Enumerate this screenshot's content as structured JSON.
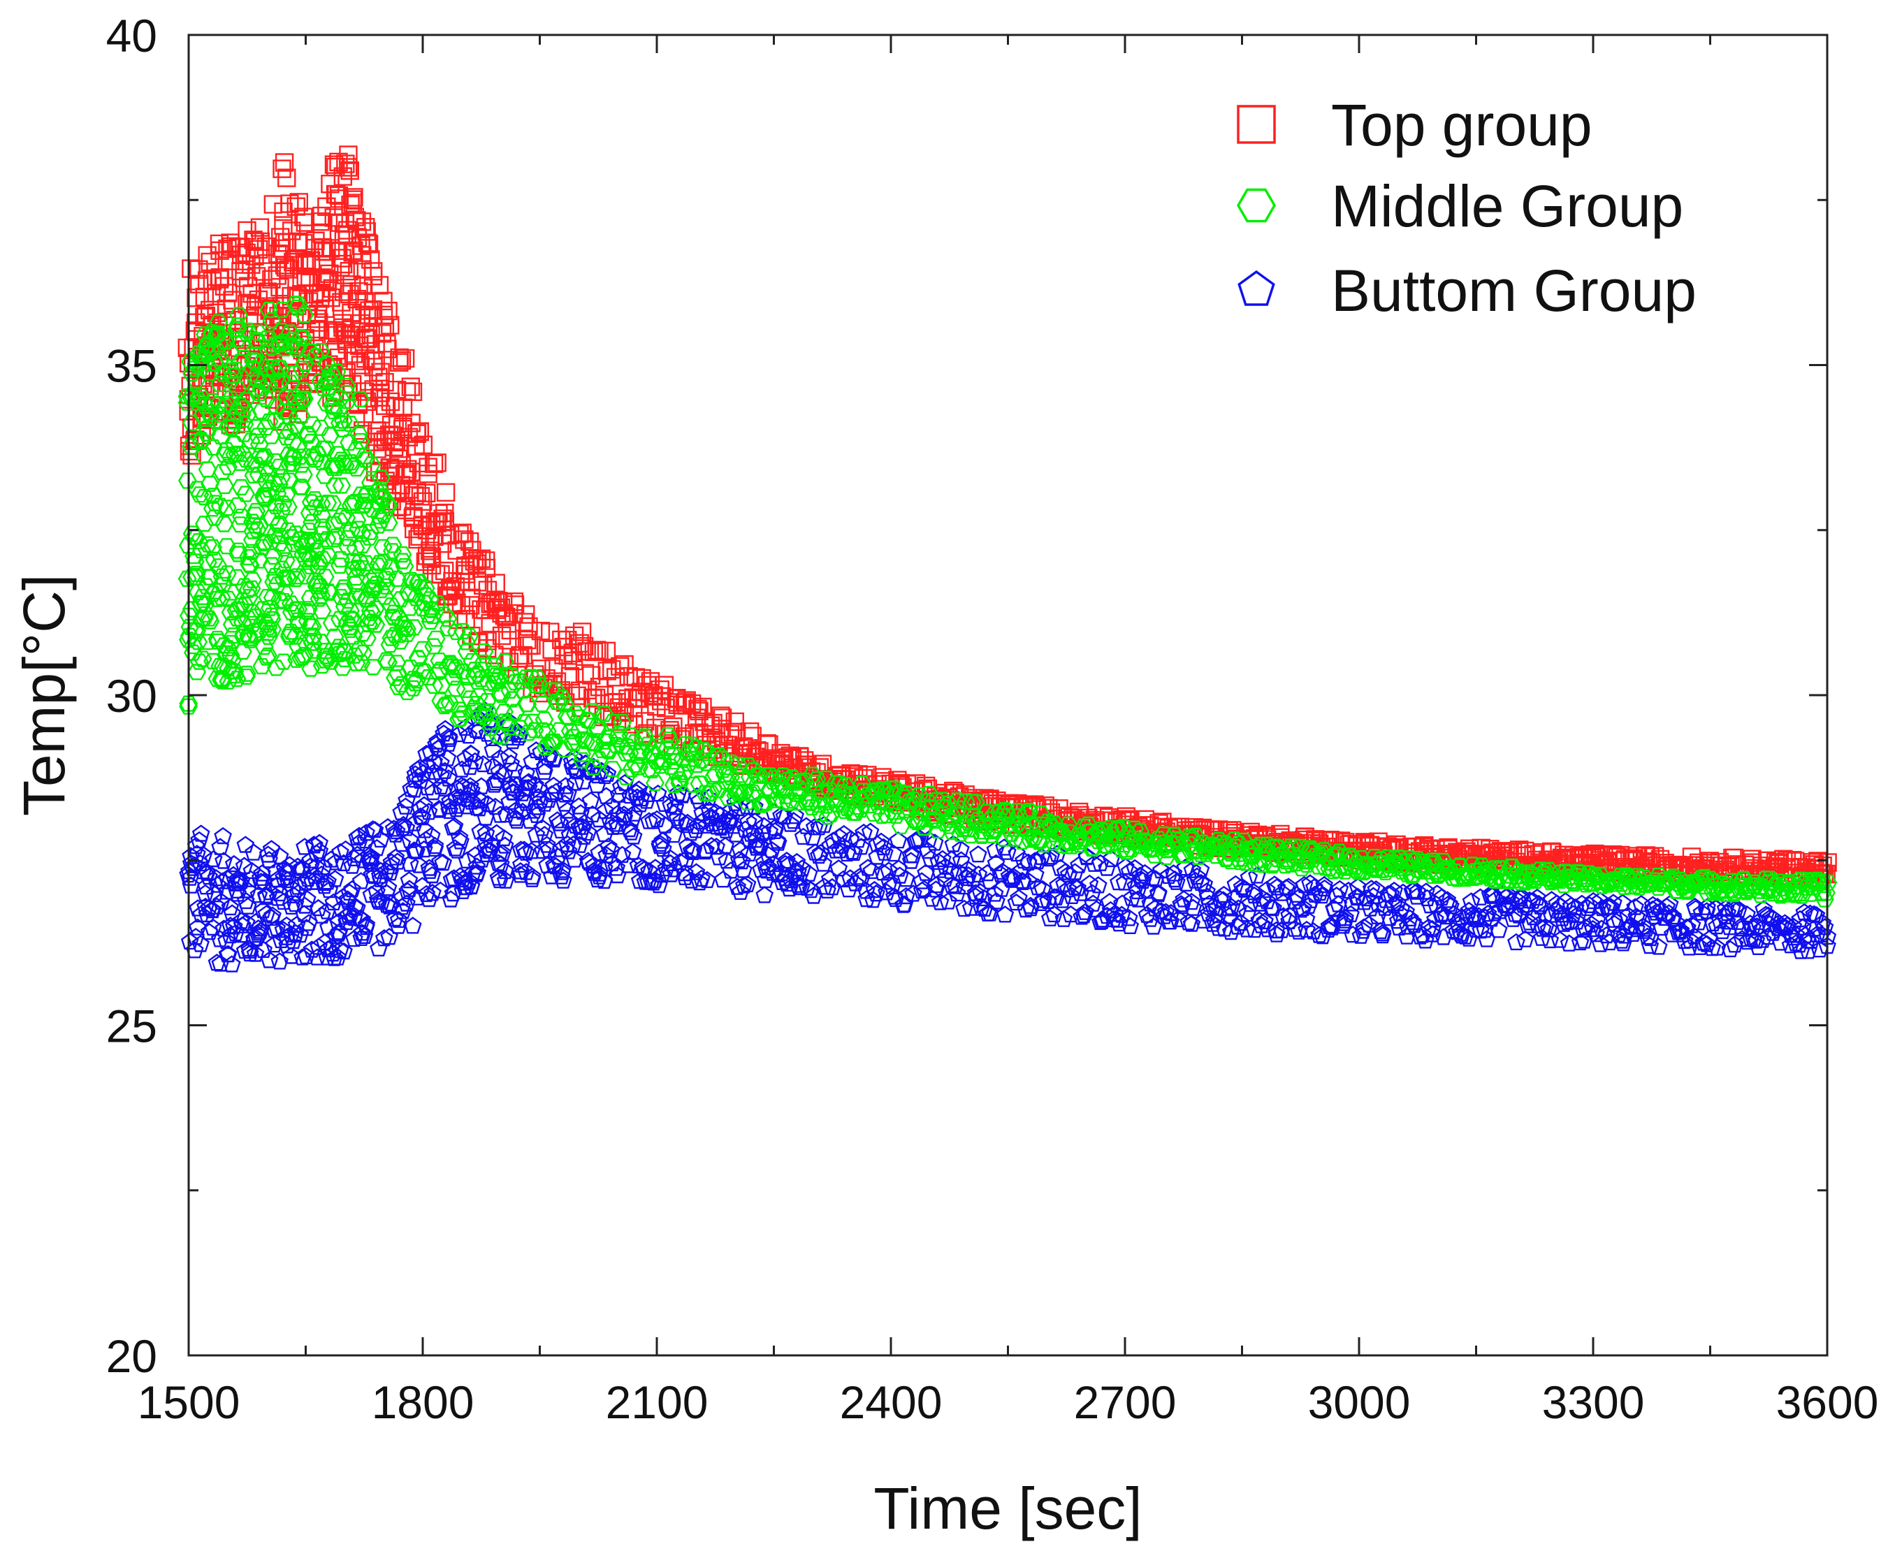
{
  "chart_data": {
    "type": "scatter",
    "title": "",
    "xlabel": "Time [sec]",
    "ylabel": "Temp[°C]",
    "xlim": [
      1500,
      3600
    ],
    "ylim": [
      20,
      40
    ],
    "x_ticks": [
      1500,
      1800,
      2100,
      2400,
      2700,
      3000,
      3300,
      3600
    ],
    "x_tick_labels": [
      "1500",
      "1800",
      "2100",
      "2400",
      "2700",
      "3000",
      "3300",
      "3600"
    ],
    "y_ticks": [
      20,
      25,
      30,
      35,
      40
    ],
    "y_tick_labels": [
      "20",
      "25",
      "30",
      "35",
      "40"
    ],
    "grid": false,
    "legend_position": "top-right",
    "series": [
      {
        "name": "Top group",
        "marker": "square",
        "color": "#ff2020",
        "band": [
          {
            "x": 1500,
            "lo": 33.5,
            "hi": 36.5
          },
          {
            "x": 1550,
            "lo": 34.0,
            "hi": 37.0
          },
          {
            "x": 1600,
            "lo": 34.5,
            "hi": 37.2
          },
          {
            "x": 1620,
            "lo": 34.0,
            "hi": 38.2
          },
          {
            "x": 1660,
            "lo": 34.5,
            "hi": 37.0
          },
          {
            "x": 1700,
            "lo": 34.5,
            "hi": 38.5
          },
          {
            "x": 1730,
            "lo": 33.5,
            "hi": 37.0
          },
          {
            "x": 1780,
            "lo": 32.5,
            "hi": 35.0
          },
          {
            "x": 1850,
            "lo": 31.0,
            "hi": 32.5
          },
          {
            "x": 1950,
            "lo": 30.0,
            "hi": 31.0
          },
          {
            "x": 2000,
            "lo": 29.8,
            "hi": 31.0
          },
          {
            "x": 2100,
            "lo": 29.3,
            "hi": 30.2
          },
          {
            "x": 2300,
            "lo": 28.6,
            "hi": 29.0
          },
          {
            "x": 2500,
            "lo": 28.1,
            "hi": 28.5
          },
          {
            "x": 2800,
            "lo": 27.7,
            "hi": 28.0
          },
          {
            "x": 3000,
            "lo": 27.5,
            "hi": 27.8
          },
          {
            "x": 3300,
            "lo": 27.3,
            "hi": 27.6
          },
          {
            "x": 3600,
            "lo": 27.2,
            "hi": 27.5
          }
        ]
      },
      {
        "name": "Middle Group",
        "marker": "hexagon",
        "color": "#00ee00",
        "band": [
          {
            "x": 1500,
            "lo": 29.8,
            "hi": 35.5
          },
          {
            "x": 1560,
            "lo": 30.2,
            "hi": 35.8
          },
          {
            "x": 1640,
            "lo": 30.4,
            "hi": 36.0
          },
          {
            "x": 1720,
            "lo": 30.4,
            "hi": 34.5
          },
          {
            "x": 1780,
            "lo": 30.0,
            "hi": 32.0
          },
          {
            "x": 1850,
            "lo": 29.6,
            "hi": 31.0
          },
          {
            "x": 2000,
            "lo": 28.9,
            "hi": 29.9
          },
          {
            "x": 2200,
            "lo": 28.4,
            "hi": 29.0
          },
          {
            "x": 2400,
            "lo": 28.0,
            "hi": 28.6
          },
          {
            "x": 2700,
            "lo": 27.6,
            "hi": 28.0
          },
          {
            "x": 3000,
            "lo": 27.3,
            "hi": 27.6
          },
          {
            "x": 3300,
            "lo": 27.1,
            "hi": 27.3
          },
          {
            "x": 3600,
            "lo": 26.9,
            "hi": 27.2
          }
        ]
      },
      {
        "name": "Buttom Group",
        "marker": "pentagon",
        "color": "#1010ee",
        "band": [
          {
            "x": 1500,
            "lo": 25.9,
            "hi": 28.0
          },
          {
            "x": 1600,
            "lo": 25.9,
            "hi": 27.7
          },
          {
            "x": 1700,
            "lo": 26.0,
            "hi": 27.8
          },
          {
            "x": 1760,
            "lo": 26.2,
            "hi": 28.2
          },
          {
            "x": 1820,
            "lo": 26.8,
            "hi": 29.5
          },
          {
            "x": 1870,
            "lo": 27.1,
            "hi": 29.9
          },
          {
            "x": 1950,
            "lo": 27.2,
            "hi": 29.3
          },
          {
            "x": 2100,
            "lo": 27.1,
            "hi": 28.6
          },
          {
            "x": 2400,
            "lo": 26.8,
            "hi": 27.9
          },
          {
            "x": 2700,
            "lo": 26.5,
            "hi": 27.5
          },
          {
            "x": 3000,
            "lo": 26.3,
            "hi": 27.1
          },
          {
            "x": 3300,
            "lo": 26.2,
            "hi": 26.9
          },
          {
            "x": 3600,
            "lo": 26.1,
            "hi": 26.7
          }
        ]
      }
    ]
  }
}
